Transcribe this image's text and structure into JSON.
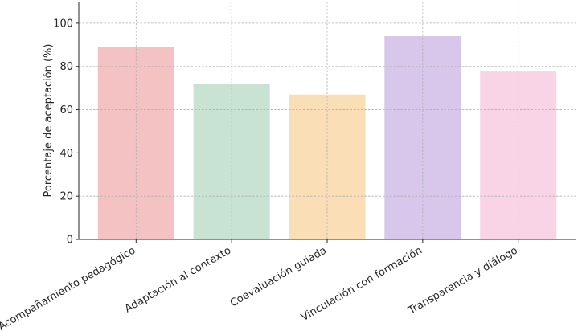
{
  "chart_data": {
    "type": "bar",
    "title": "",
    "xlabel": "",
    "ylabel": "Porcentaje de aceptación (%)",
    "categories": [
      "Acompañamiento pedagógico",
      "Adaptación al contexto",
      "Coevaluación guiada",
      "Vinculación con formación",
      "Transparencia y diálogo"
    ],
    "values": [
      89,
      72,
      67,
      94,
      78
    ],
    "colors": [
      "#f4c2c2",
      "#c8e3d4",
      "#f9deb6",
      "#d8c6eb",
      "#f9d4e6"
    ],
    "ylim": [
      0,
      110
    ],
    "yticks": [
      0,
      20,
      40,
      60,
      80,
      100
    ],
    "grid": true
  }
}
